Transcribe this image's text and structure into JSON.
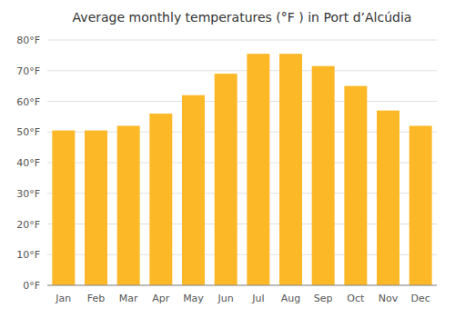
{
  "chart_data": {
    "type": "bar",
    "title": "Average monthly temperatures (°F ) in Port d’Alcúdia",
    "categories": [
      "Jan",
      "Feb",
      "Mar",
      "Apr",
      "May",
      "Jun",
      "Jul",
      "Aug",
      "Sep",
      "Oct",
      "Nov",
      "Dec"
    ],
    "values": [
      50.5,
      50.5,
      52,
      56,
      62,
      69,
      75.5,
      75.5,
      71.5,
      65,
      57,
      52
    ],
    "color": "#FDB827",
    "ylim": [
      0,
      80
    ],
    "yticks": [
      {
        "value": 0,
        "label": "0°F"
      },
      {
        "value": 10,
        "label": "10°F"
      },
      {
        "value": 20,
        "label": "20°F"
      },
      {
        "value": 30,
        "label": "30°F"
      },
      {
        "value": 40,
        "label": "40°F"
      },
      {
        "value": 50,
        "label": "50°F"
      },
      {
        "value": 60,
        "label": "60°F"
      },
      {
        "value": 70,
        "label": "70°F"
      },
      {
        "value": 80,
        "label": "80°F"
      }
    ],
    "grid": true
  }
}
